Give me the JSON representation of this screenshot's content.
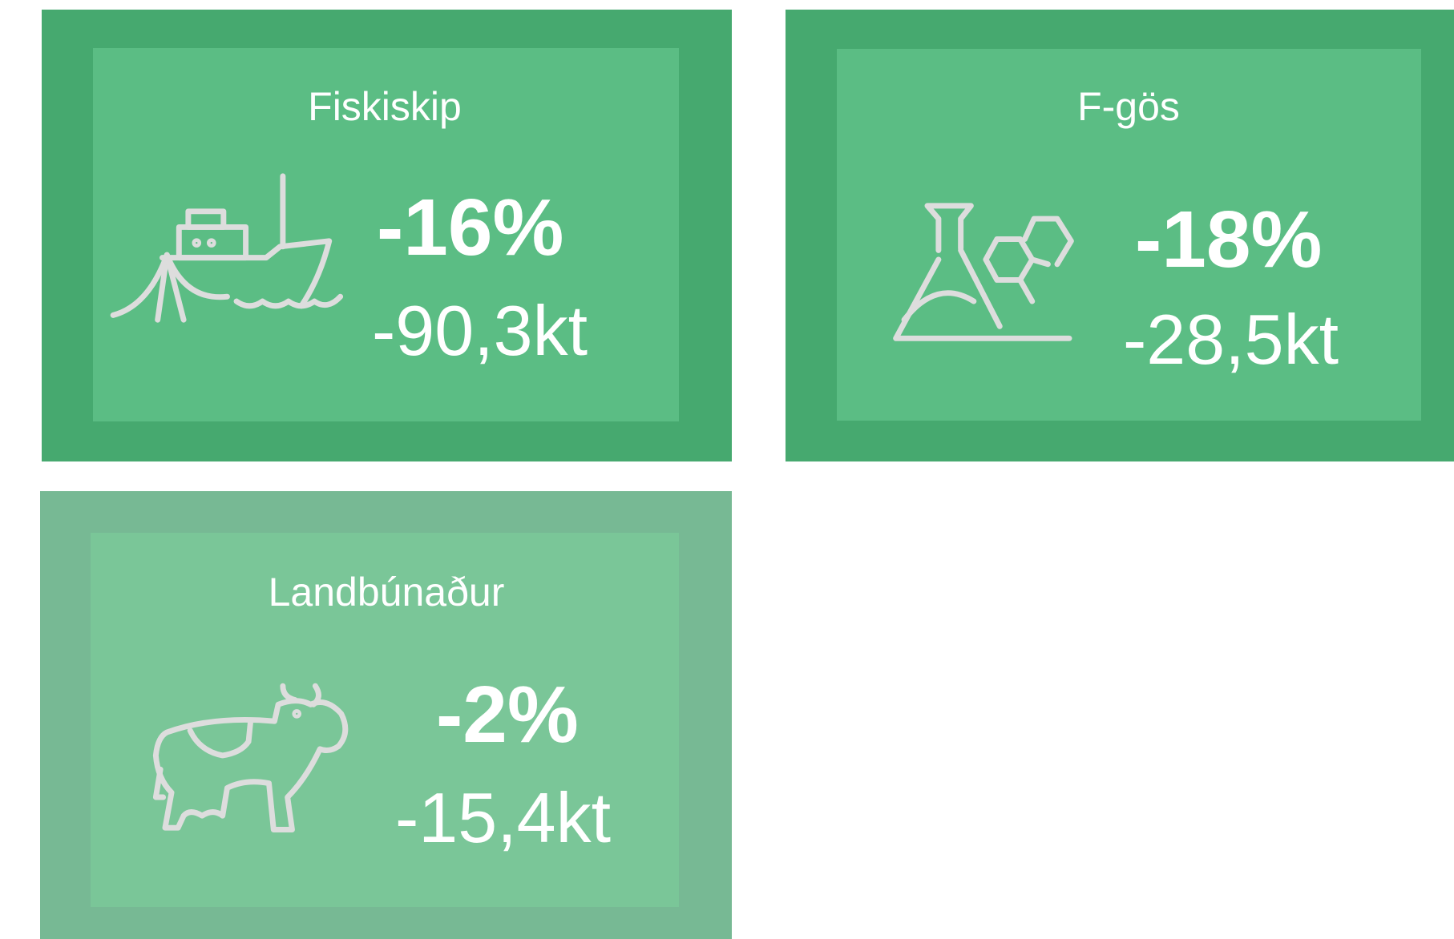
{
  "cards": [
    {
      "title": "Fiskiskip",
      "percent": "-16%",
      "amount": "-90,3kt"
    },
    {
      "title": "F-gös",
      "percent": "-18%",
      "amount": "-28,5kt"
    },
    {
      "title": "Landbúnaður",
      "percent": "-2%",
      "amount": "-15,4kt"
    }
  ]
}
